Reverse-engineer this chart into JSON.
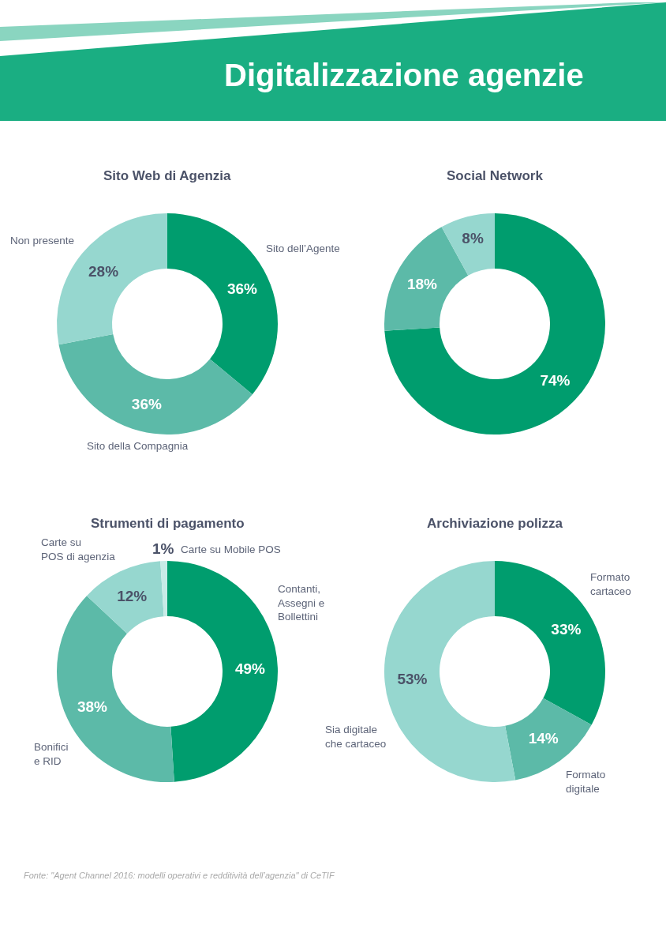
{
  "chart_data": [
    {
      "type": "other",
      "title": "Digitalizzazione agenzie",
      "annotations": [
        "Fonte: \"Agent Channel 2016: modelli operativi e redditività dell’agenzia\" di CeTIF"
      ]
    },
    {
      "type": "donut",
      "title": "Sito Web di Agenzia",
      "categories": [
        "Sito dell’Agente",
        "Sito della Compagnia",
        "Non presente"
      ],
      "values": [
        36,
        36,
        28
      ],
      "colors": [
        "#009d6e",
        "#5cbaa8",
        "#96d7cf"
      ],
      "value_labels": [
        "36%",
        "36%",
        "28%"
      ]
    },
    {
      "type": "donut",
      "title": "Social Network",
      "categories": [
        null,
        null,
        null
      ],
      "values": [
        74,
        18,
        8
      ],
      "colors": [
        "#009d6e",
        "#5cbaa8",
        "#96d7cf"
      ],
      "value_labels": [
        "74%",
        "18%",
        "8%"
      ]
    },
    {
      "type": "donut",
      "title": "Strumenti di pagamento",
      "categories": [
        "Contanti,\nAssegni e\nBollettini",
        "Bonifici\ne RID",
        "Carte su\nPOS di agenzia",
        "Carte su Mobile POS"
      ],
      "values": [
        49,
        38,
        12,
        1
      ],
      "colors": [
        "#009d6e",
        "#5cbaa8",
        "#96d7cf",
        "#c8ebe7"
      ],
      "value_labels": [
        "49%",
        "38%",
        "12%",
        "1%"
      ]
    },
    {
      "type": "donut",
      "title": "Archiviazione polizza",
      "categories": [
        "Formato\ncartaceo",
        "Formato\ndigitale",
        "Sia digitale\nche cartaceo"
      ],
      "values": [
        33,
        14,
        53
      ],
      "colors": [
        "#009d6e",
        "#5cbaa8",
        "#96d7cf"
      ],
      "value_labels": [
        "33%",
        "14%",
        "53%"
      ]
    }
  ]
}
